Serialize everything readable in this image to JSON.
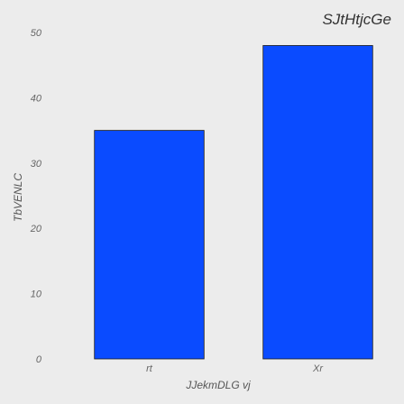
{
  "chart_data": {
    "type": "bar",
    "title": "SJtHtjcGe",
    "xlabel": "JJekmDLG vj",
    "ylabel": "TbVENLC",
    "categories": [
      "rt",
      "Xr"
    ],
    "values": [
      35,
      48
    ],
    "ylim": [
      0,
      50
    ],
    "yticks": [
      0,
      10,
      20,
      30,
      40,
      50
    ],
    "grid": false,
    "colors": {
      "bar": "#0a4bff",
      "background": "#ececec"
    }
  }
}
